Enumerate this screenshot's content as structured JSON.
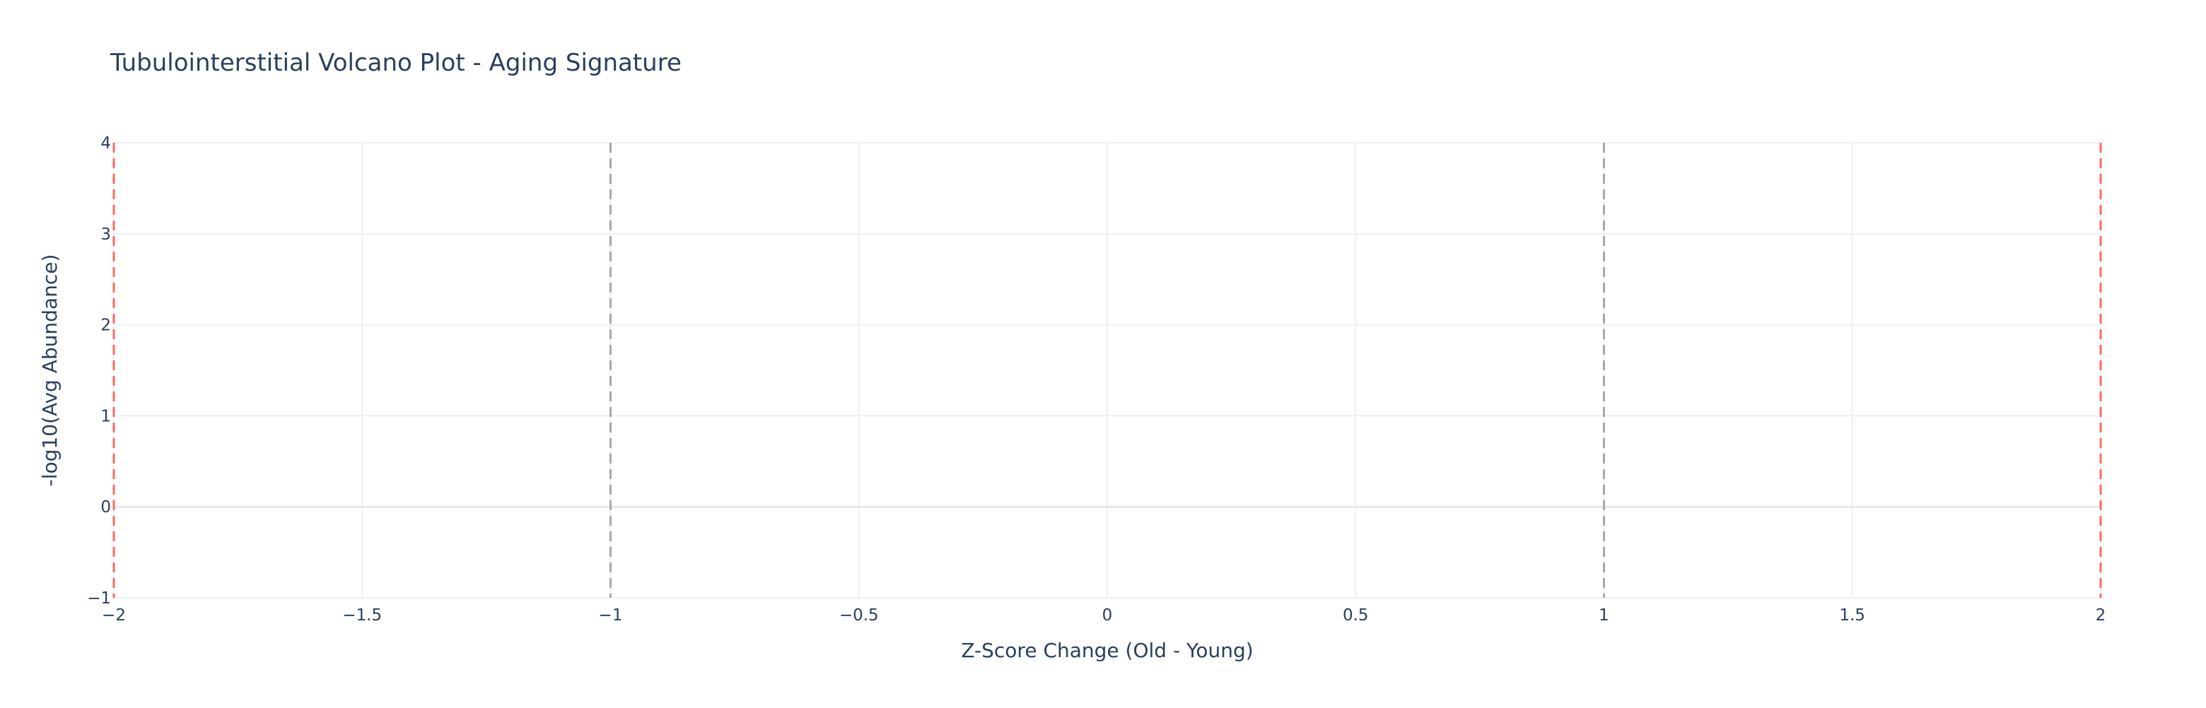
{
  "chart_data": {
    "type": "scatter",
    "title": "Tubulointerstitial Volcano Plot - Aging Signature",
    "xlabel": "Z-Score Change (Old - Young)",
    "ylabel": "-log10(Avg Abundance)",
    "xlim": [
      -2,
      2
    ],
    "ylim": [
      -1,
      4
    ],
    "x_ticks": [
      -2,
      -1.5,
      -1,
      -0.5,
      0,
      0.5,
      1,
      1.5,
      2
    ],
    "x_tick_labels": [
      "−2",
      "−1.5",
      "−1",
      "−0.5",
      "0",
      "0.5",
      "1",
      "1.5",
      "2"
    ],
    "y_ticks": [
      -1,
      0,
      1,
      2,
      3,
      4
    ],
    "y_tick_labels": [
      "−1",
      "0",
      "1",
      "2",
      "3",
      "4"
    ],
    "grid": true,
    "series": [],
    "threshold_lines": [
      {
        "x": -2,
        "color": "#ff6b5f",
        "style": "dashed"
      },
      {
        "x": -1,
        "color": "#a8a8a8",
        "style": "dashed"
      },
      {
        "x": 1,
        "color": "#a8a8a8",
        "style": "dashed"
      },
      {
        "x": 2,
        "color": "#ff6b5f",
        "style": "dashed"
      }
    ],
    "colors": {
      "grid": "#ebf0f8",
      "zero_line": "#e3e9f2",
      "text": "#2a3f5f"
    }
  }
}
